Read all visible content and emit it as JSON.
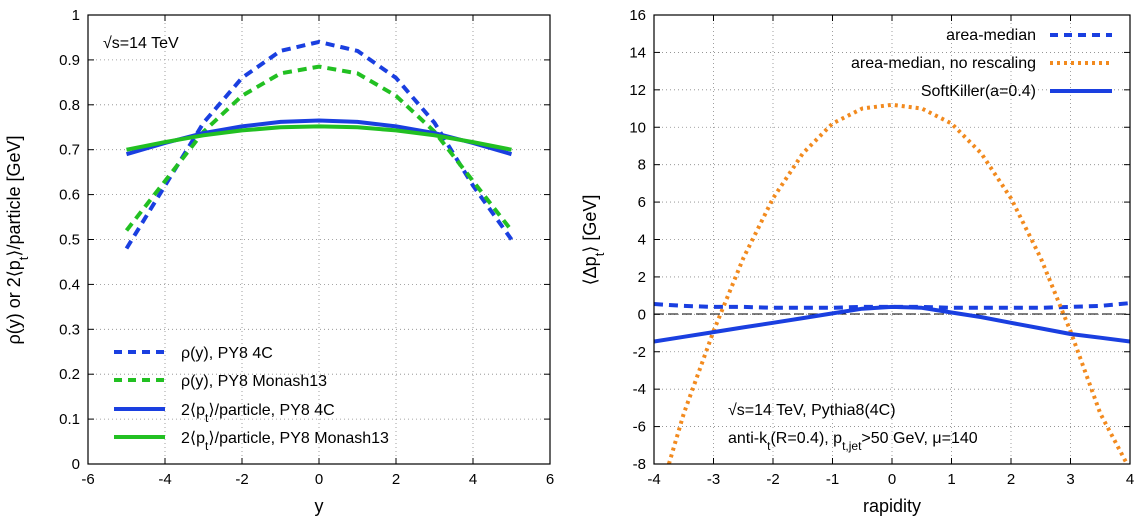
{
  "chart_data": [
    {
      "type": "line",
      "xlabel": "y",
      "ylabel": "ρ(y) or 2⟨p_t⟩/particle [GeV]",
      "xlim": [
        -6,
        6
      ],
      "ylim": [
        0,
        1
      ],
      "xticks": [
        -6,
        -4,
        -2,
        0,
        2,
        4,
        6
      ],
      "yticks": [
        0,
        0.1,
        0.2,
        0.3,
        0.4,
        0.5,
        0.6,
        0.7,
        0.8,
        0.9,
        1
      ],
      "grid": true,
      "annotations": [
        "√s=14 TeV"
      ],
      "legend_position": "bottom-left",
      "series": [
        {
          "name": "ρ(y), PY8 4C",
          "color": "#1a3fe0",
          "style": "dashed",
          "x": [
            -5,
            -4,
            -3,
            -2,
            -1,
            0,
            1,
            2,
            3,
            4,
            5
          ],
          "y": [
            0.48,
            0.62,
            0.76,
            0.86,
            0.92,
            0.94,
            0.92,
            0.86,
            0.76,
            0.62,
            0.5
          ]
        },
        {
          "name": "ρ(y), PY8 Monash13",
          "color": "#22c022",
          "style": "dashed",
          "x": [
            -5,
            -4,
            -3,
            -2,
            -1,
            0,
            1,
            2,
            3,
            4,
            5
          ],
          "y": [
            0.52,
            0.63,
            0.74,
            0.82,
            0.87,
            0.885,
            0.87,
            0.82,
            0.74,
            0.63,
            0.52
          ]
        },
        {
          "name": "2⟨p_t⟩/particle, PY8 4C",
          "color": "#1a3fe0",
          "style": "solid",
          "x": [
            -5,
            -4,
            -3,
            -2,
            -1,
            0,
            1,
            2,
            3,
            4,
            5
          ],
          "y": [
            0.69,
            0.715,
            0.737,
            0.752,
            0.762,
            0.765,
            0.762,
            0.752,
            0.737,
            0.715,
            0.69
          ]
        },
        {
          "name": "2⟨p_t⟩/particle, PY8 Monash13",
          "color": "#22c022",
          "style": "solid",
          "x": [
            -5,
            -4,
            -3,
            -2,
            -1,
            0,
            1,
            2,
            3,
            4,
            5
          ],
          "y": [
            0.7,
            0.717,
            0.732,
            0.743,
            0.75,
            0.752,
            0.75,
            0.743,
            0.732,
            0.717,
            0.7
          ]
        }
      ]
    },
    {
      "type": "line",
      "xlabel": "rapidity",
      "ylabel": "⟨Δp_t⟩ [GeV]",
      "xlim": [
        -4,
        4
      ],
      "ylim": [
        -8,
        16
      ],
      "xticks": [
        -4,
        -3,
        -2,
        -1,
        0,
        1,
        2,
        3,
        4
      ],
      "yticks": [
        -8,
        -6,
        -4,
        -2,
        0,
        2,
        4,
        6,
        8,
        10,
        12,
        14,
        16
      ],
      "grid": true,
      "annotations": [
        "√s=14 TeV, Pythia8(4C)",
        "anti-k_t(R=0.4), p_t,jet>50 GeV, μ=140"
      ],
      "legend_position": "top-right",
      "series": [
        {
          "name": "area-median",
          "color": "#1a3fe0",
          "style": "dashed",
          "x": [
            -4,
            -3.5,
            -3,
            -2.5,
            -2,
            -1.5,
            -1,
            -0.5,
            0,
            0.5,
            1,
            1.5,
            2,
            2.5,
            3,
            3.5,
            4
          ],
          "y": [
            0.55,
            0.45,
            0.4,
            0.4,
            0.35,
            0.35,
            0.35,
            0.4,
            0.4,
            0.4,
            0.35,
            0.35,
            0.35,
            0.35,
            0.4,
            0.45,
            0.6
          ]
        },
        {
          "name": "area-median, no rescaling",
          "color": "#f28a1e",
          "style": "dotted",
          "x": [
            -3.75,
            -3.5,
            -3,
            -2.5,
            -2,
            -1.5,
            -1,
            -0.5,
            0,
            0.5,
            1,
            1.5,
            2,
            2.5,
            3,
            3.5,
            3.95
          ],
          "y": [
            -8,
            -5.3,
            -0.9,
            3.0,
            6.2,
            8.6,
            10.2,
            11.0,
            11.2,
            11.0,
            10.2,
            8.6,
            6.2,
            3.0,
            -0.9,
            -5.3,
            -8
          ]
        },
        {
          "name": "SoftKiller(a=0.4)",
          "color": "#1a3fe0",
          "style": "solid",
          "x": [
            -4,
            -3.5,
            -3,
            -2.5,
            -2,
            -1.5,
            -1,
            -0.5,
            0,
            0.5,
            1,
            1.5,
            2,
            2.5,
            3,
            3.5,
            4
          ],
          "y": [
            -1.45,
            -1.2,
            -0.95,
            -0.7,
            -0.45,
            -0.2,
            0.05,
            0.3,
            0.4,
            0.35,
            0.1,
            -0.15,
            -0.45,
            -0.75,
            -1.05,
            -1.25,
            -1.45
          ]
        }
      ]
    }
  ]
}
